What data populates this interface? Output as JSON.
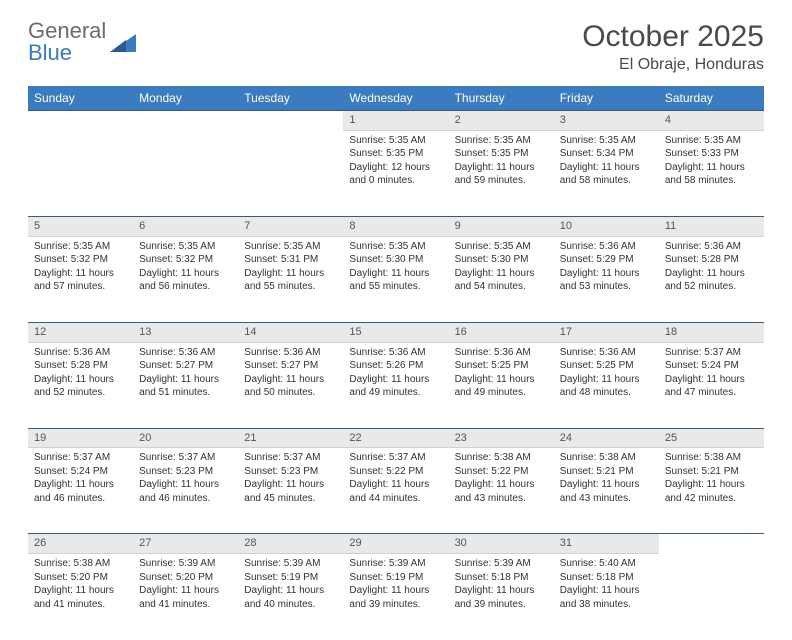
{
  "logo": {
    "line1": "General",
    "line2": "Blue"
  },
  "title": "October 2025",
  "location": "El Obraje, Honduras",
  "colors": {
    "header_bg": "#3b7bbf",
    "header_text": "#ffffff",
    "daynum_bg": "#e9e9e9",
    "rule": "#3b5a7a",
    "logo_gray": "#6b6b6b",
    "logo_blue": "#3b7bbf"
  },
  "weekdays": [
    "Sunday",
    "Monday",
    "Tuesday",
    "Wednesday",
    "Thursday",
    "Friday",
    "Saturday"
  ],
  "weeks": [
    [
      null,
      null,
      null,
      {
        "n": "1",
        "sr": "5:35 AM",
        "ss": "5:35 PM",
        "dl": "12 hours and 0 minutes."
      },
      {
        "n": "2",
        "sr": "5:35 AM",
        "ss": "5:35 PM",
        "dl": "11 hours and 59 minutes."
      },
      {
        "n": "3",
        "sr": "5:35 AM",
        "ss": "5:34 PM",
        "dl": "11 hours and 58 minutes."
      },
      {
        "n": "4",
        "sr": "5:35 AM",
        "ss": "5:33 PM",
        "dl": "11 hours and 58 minutes."
      }
    ],
    [
      {
        "n": "5",
        "sr": "5:35 AM",
        "ss": "5:32 PM",
        "dl": "11 hours and 57 minutes."
      },
      {
        "n": "6",
        "sr": "5:35 AM",
        "ss": "5:32 PM",
        "dl": "11 hours and 56 minutes."
      },
      {
        "n": "7",
        "sr": "5:35 AM",
        "ss": "5:31 PM",
        "dl": "11 hours and 55 minutes."
      },
      {
        "n": "8",
        "sr": "5:35 AM",
        "ss": "5:30 PM",
        "dl": "11 hours and 55 minutes."
      },
      {
        "n": "9",
        "sr": "5:35 AM",
        "ss": "5:30 PM",
        "dl": "11 hours and 54 minutes."
      },
      {
        "n": "10",
        "sr": "5:36 AM",
        "ss": "5:29 PM",
        "dl": "11 hours and 53 minutes."
      },
      {
        "n": "11",
        "sr": "5:36 AM",
        "ss": "5:28 PM",
        "dl": "11 hours and 52 minutes."
      }
    ],
    [
      {
        "n": "12",
        "sr": "5:36 AM",
        "ss": "5:28 PM",
        "dl": "11 hours and 52 minutes."
      },
      {
        "n": "13",
        "sr": "5:36 AM",
        "ss": "5:27 PM",
        "dl": "11 hours and 51 minutes."
      },
      {
        "n": "14",
        "sr": "5:36 AM",
        "ss": "5:27 PM",
        "dl": "11 hours and 50 minutes."
      },
      {
        "n": "15",
        "sr": "5:36 AM",
        "ss": "5:26 PM",
        "dl": "11 hours and 49 minutes."
      },
      {
        "n": "16",
        "sr": "5:36 AM",
        "ss": "5:25 PM",
        "dl": "11 hours and 49 minutes."
      },
      {
        "n": "17",
        "sr": "5:36 AM",
        "ss": "5:25 PM",
        "dl": "11 hours and 48 minutes."
      },
      {
        "n": "18",
        "sr": "5:37 AM",
        "ss": "5:24 PM",
        "dl": "11 hours and 47 minutes."
      }
    ],
    [
      {
        "n": "19",
        "sr": "5:37 AM",
        "ss": "5:24 PM",
        "dl": "11 hours and 46 minutes."
      },
      {
        "n": "20",
        "sr": "5:37 AM",
        "ss": "5:23 PM",
        "dl": "11 hours and 46 minutes."
      },
      {
        "n": "21",
        "sr": "5:37 AM",
        "ss": "5:23 PM",
        "dl": "11 hours and 45 minutes."
      },
      {
        "n": "22",
        "sr": "5:37 AM",
        "ss": "5:22 PM",
        "dl": "11 hours and 44 minutes."
      },
      {
        "n": "23",
        "sr": "5:38 AM",
        "ss": "5:22 PM",
        "dl": "11 hours and 43 minutes."
      },
      {
        "n": "24",
        "sr": "5:38 AM",
        "ss": "5:21 PM",
        "dl": "11 hours and 43 minutes."
      },
      {
        "n": "25",
        "sr": "5:38 AM",
        "ss": "5:21 PM",
        "dl": "11 hours and 42 minutes."
      }
    ],
    [
      {
        "n": "26",
        "sr": "5:38 AM",
        "ss": "5:20 PM",
        "dl": "11 hours and 41 minutes."
      },
      {
        "n": "27",
        "sr": "5:39 AM",
        "ss": "5:20 PM",
        "dl": "11 hours and 41 minutes."
      },
      {
        "n": "28",
        "sr": "5:39 AM",
        "ss": "5:19 PM",
        "dl": "11 hours and 40 minutes."
      },
      {
        "n": "29",
        "sr": "5:39 AM",
        "ss": "5:19 PM",
        "dl": "11 hours and 39 minutes."
      },
      {
        "n": "30",
        "sr": "5:39 AM",
        "ss": "5:18 PM",
        "dl": "11 hours and 39 minutes."
      },
      {
        "n": "31",
        "sr": "5:40 AM",
        "ss": "5:18 PM",
        "dl": "11 hours and 38 minutes."
      },
      null
    ]
  ],
  "labels": {
    "sunrise": "Sunrise:",
    "sunset": "Sunset:",
    "daylight": "Daylight:"
  }
}
